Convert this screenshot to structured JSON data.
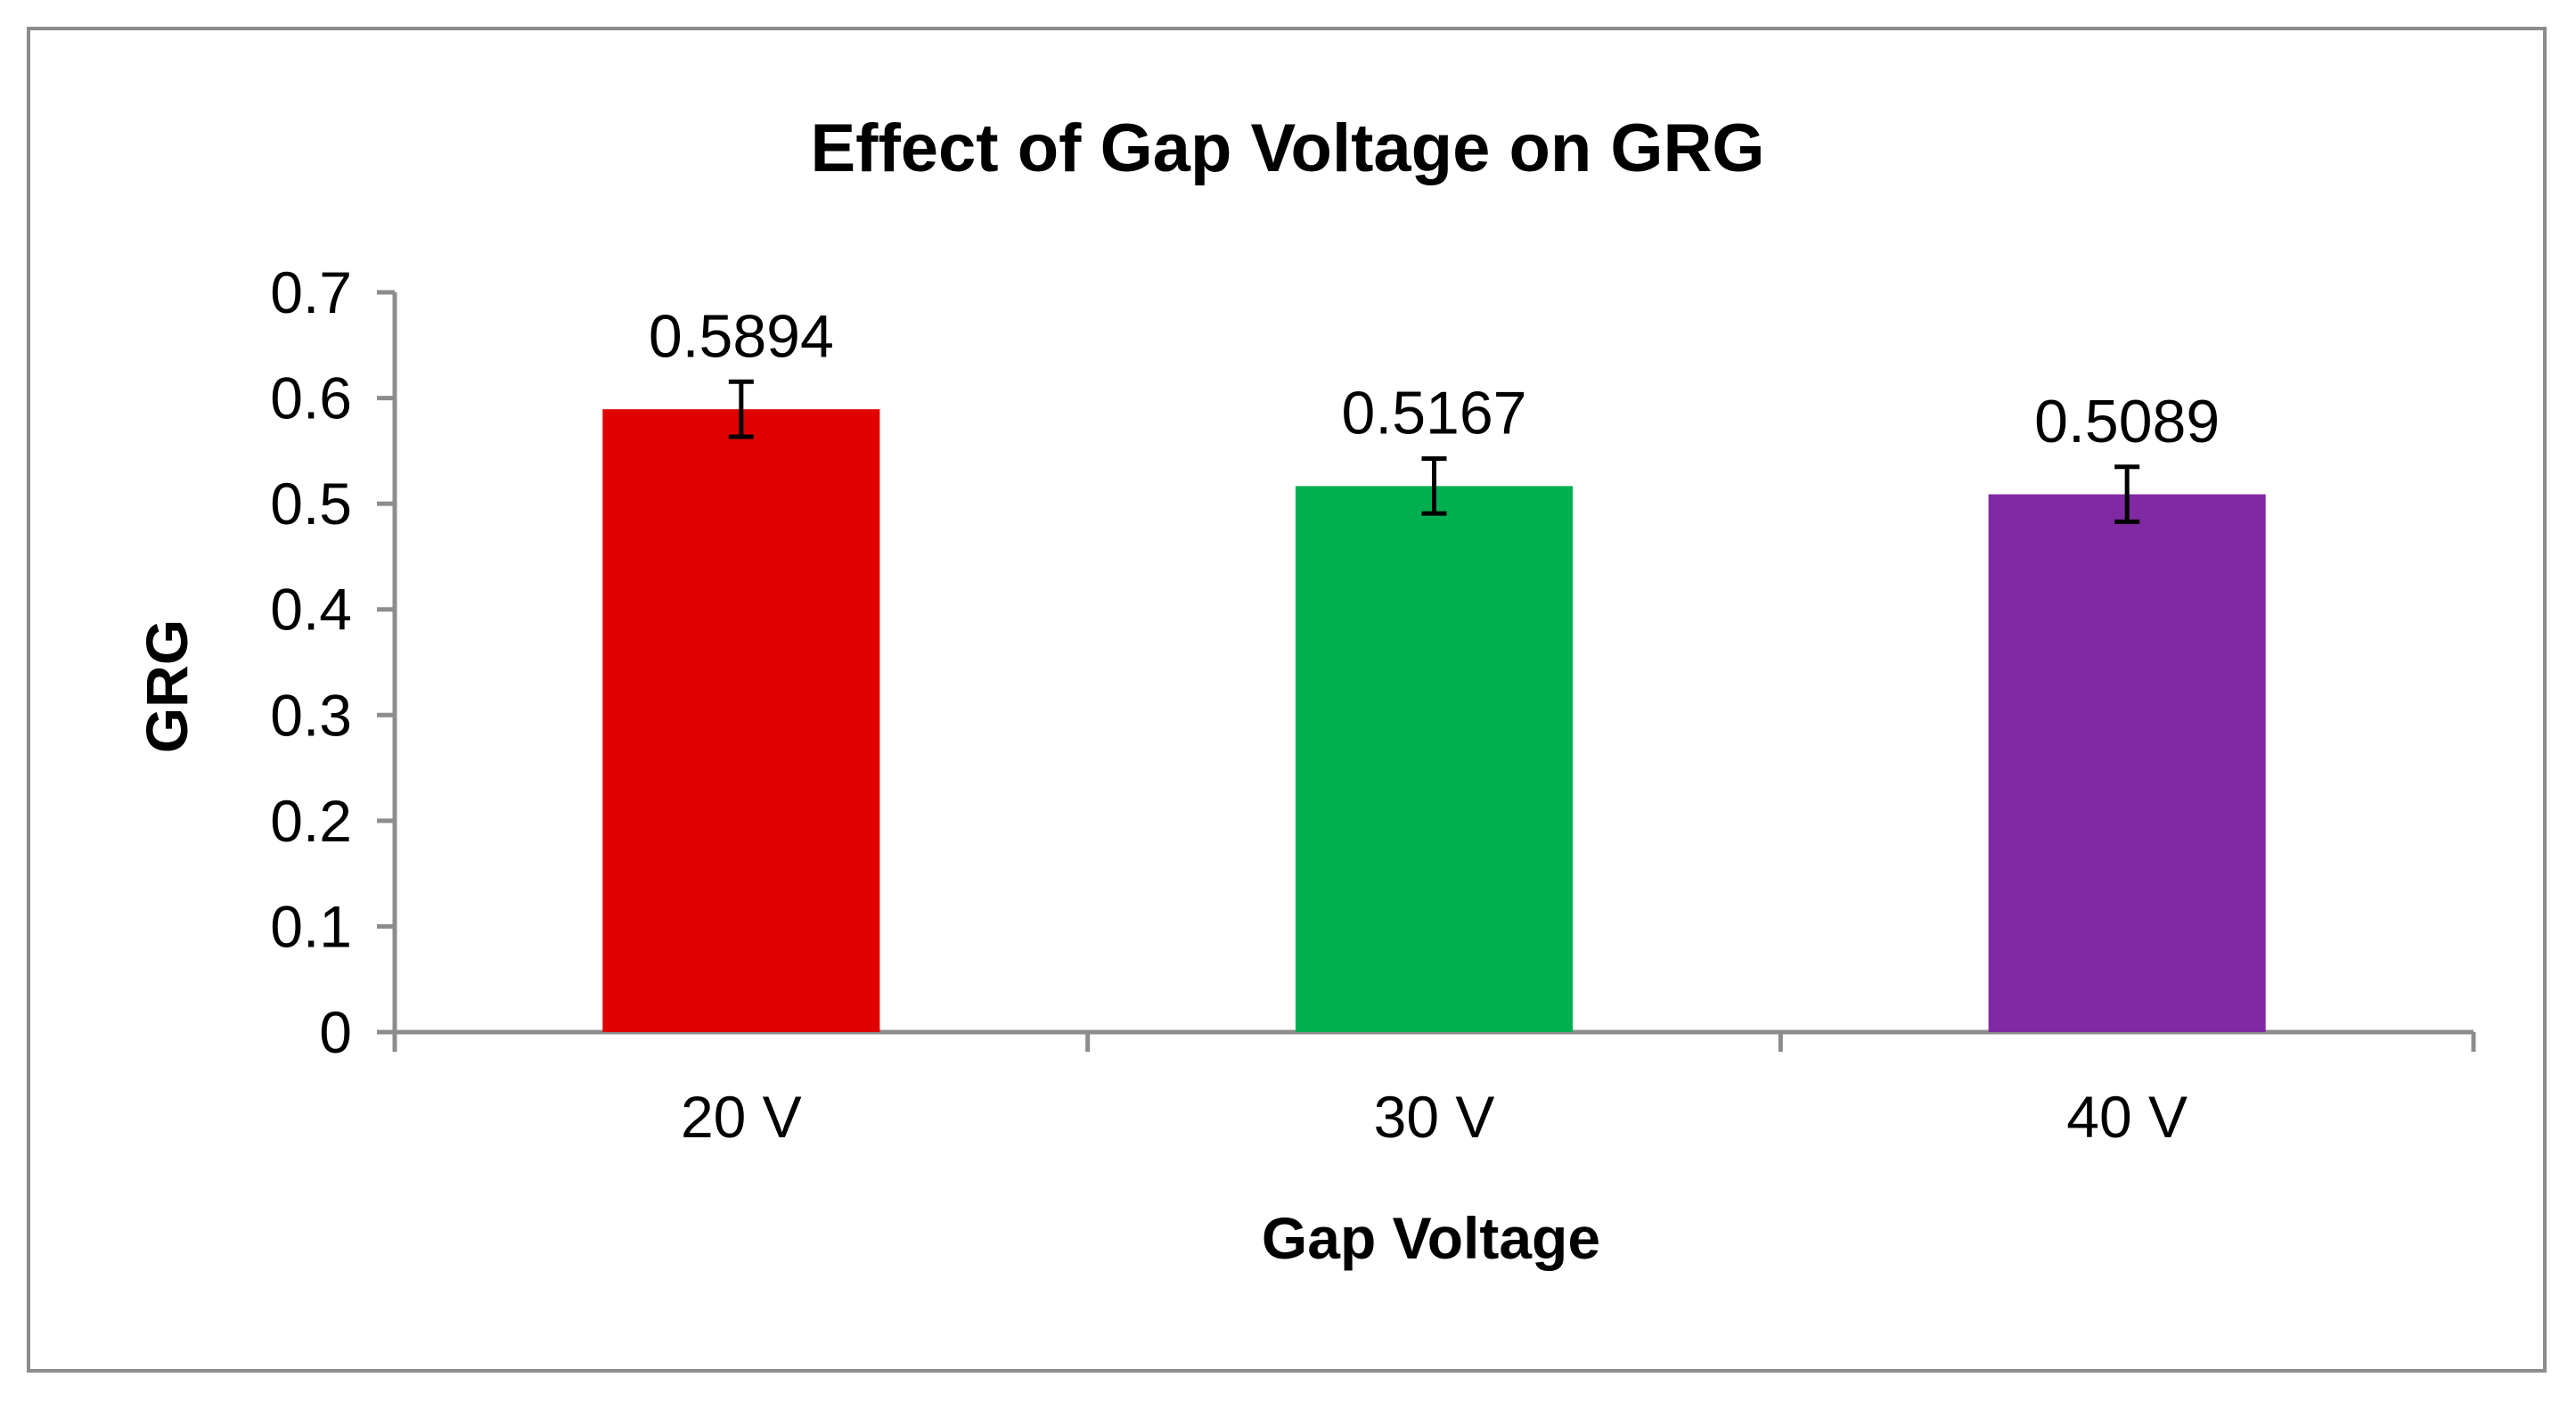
{
  "chart_data": {
    "type": "bar",
    "title": "Effect of Gap Voltage on GRG",
    "xlabel": "Gap Voltage",
    "ylabel": "GRG",
    "categories": [
      "20 V",
      "30 V",
      "40 V"
    ],
    "values": [
      0.5894,
      0.5167,
      0.5089
    ],
    "value_labels": [
      "0.5894",
      "0.5167",
      "0.5089"
    ],
    "error": [
      0.026,
      0.026,
      0.026
    ],
    "colors": [
      "#e00000",
      "#00b050",
      "#7f2aa2"
    ],
    "ylim": [
      0,
      0.7
    ],
    "yticks": [
      "0",
      "0.1",
      "0.2",
      "0.3",
      "0.4",
      "0.5",
      "0.6",
      "0.7"
    ],
    "grid": false,
    "legend": "none"
  }
}
